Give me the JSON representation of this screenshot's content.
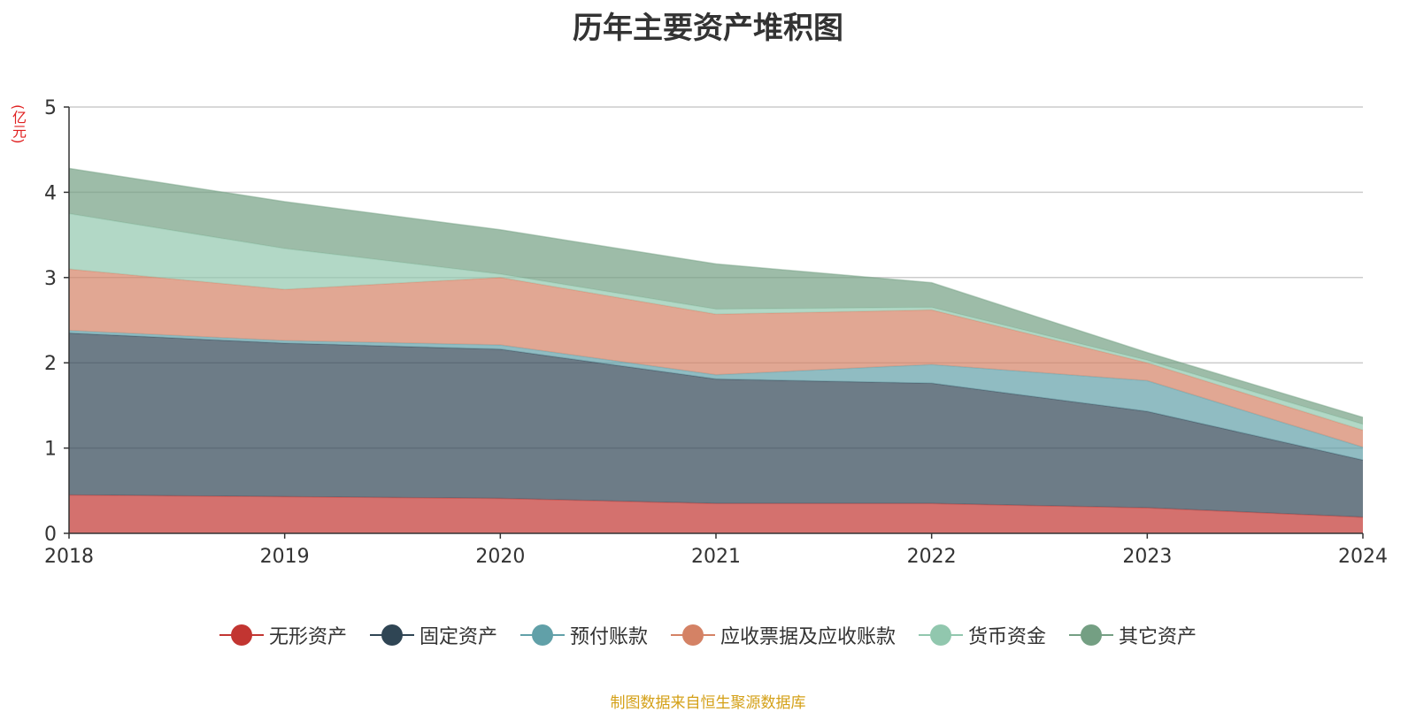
{
  "chart_data": {
    "type": "area",
    "stacked": true,
    "title": "历年主要资产堆积图",
    "unit_label": "(亿元)",
    "x": [
      "2018",
      "2019",
      "2020",
      "2021",
      "2022",
      "2023",
      "2024"
    ],
    "ylim": [
      0,
      5
    ],
    "yticks": [
      "0",
      "1",
      "2",
      "3",
      "4",
      "5"
    ],
    "grid": true,
    "legend_position": "bottom",
    "series": [
      {
        "name": "无形资产",
        "color": "#c23531",
        "values": [
          0.45,
          0.43,
          0.41,
          0.35,
          0.35,
          0.3,
          0.19
        ]
      },
      {
        "name": "固定资产",
        "color": "#2f4554",
        "values": [
          1.9,
          1.8,
          1.75,
          1.46,
          1.41,
          1.13,
          0.67
        ]
      },
      {
        "name": "预付账款",
        "color": "#61a0a8",
        "values": [
          0.03,
          0.03,
          0.05,
          0.05,
          0.22,
          0.36,
          0.15
        ]
      },
      {
        "name": "应收票据及应收账款",
        "color": "#d48265",
        "values": [
          0.72,
          0.6,
          0.79,
          0.71,
          0.64,
          0.21,
          0.2
        ]
      },
      {
        "name": "货币资金",
        "color": "#91c7ae",
        "values": [
          0.65,
          0.48,
          0.04,
          0.06,
          0.03,
          0.03,
          0.07
        ]
      },
      {
        "name": "其它资产",
        "color": "#749f83",
        "values": [
          0.53,
          0.55,
          0.52,
          0.53,
          0.29,
          0.09,
          0.08
        ]
      }
    ]
  },
  "source_note": "制图数据来自恒生聚源数据库"
}
